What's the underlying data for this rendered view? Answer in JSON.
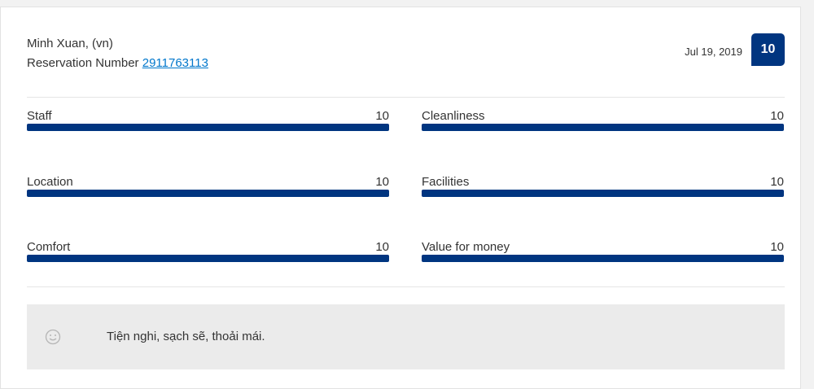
{
  "review": {
    "reviewer": "Minh Xuan, (vn)",
    "reservation_label": "Reservation Number",
    "reservation_number": "2911763113",
    "date": "Jul 19, 2019",
    "score": 10,
    "ratings": [
      {
        "label": "Staff",
        "value": 10
      },
      {
        "label": "Cleanliness",
        "value": 10
      },
      {
        "label": "Location",
        "value": 10
      },
      {
        "label": "Facilities",
        "value": 10
      },
      {
        "label": "Comfort",
        "value": 10
      },
      {
        "label": "Value for money",
        "value": 10
      }
    ],
    "comment": "Tiện nghi, sạch sẽ, thoải mái."
  }
}
